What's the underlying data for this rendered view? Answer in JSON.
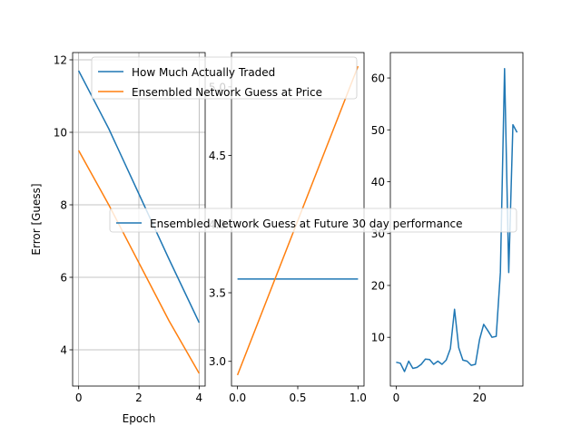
{
  "chart_data": [
    {
      "type": "line",
      "xlabel": "Epoch",
      "ylabel": "Error [Guess]",
      "grid": true,
      "xlim": [
        -0.2,
        4.2
      ],
      "ylim": [
        3.0,
        12.2
      ],
      "xticks": [
        0,
        2,
        4
      ],
      "yticks": [
        4,
        6,
        8,
        10,
        12
      ],
      "series": [
        {
          "name": "How Much Actually Traded",
          "color": "#1f77b4",
          "x": [
            0,
            1,
            2,
            3,
            4
          ],
          "y": [
            11.7,
            10.1,
            8.3,
            6.5,
            4.75
          ]
        },
        {
          "name": "Ensembled Network Guess at Price",
          "color": "#ff7f0e",
          "x": [
            0,
            1,
            2,
            3,
            4
          ],
          "y": [
            9.5,
            8.0,
            6.4,
            4.8,
            3.35
          ]
        }
      ],
      "legend": "top-right"
    },
    {
      "type": "line",
      "xlim": [
        -0.05,
        1.05
      ],
      "ylim": [
        2.82,
        5.25
      ],
      "xticks": [
        0.0,
        0.5,
        1.0
      ],
      "xtick_labels": [
        "0.0",
        "0.5",
        "1.0"
      ],
      "yticks": [
        3.0,
        3.5,
        4.0,
        4.5,
        5.0
      ],
      "ytick_labels": [
        "3.0",
        "3.5",
        "4.0",
        "4.5",
        "5.0"
      ],
      "series": [
        {
          "color": "#1f77b4",
          "x": [
            0,
            1
          ],
          "y": [
            3.6,
            3.6
          ]
        },
        {
          "color": "#ff7f0e",
          "x": [
            0,
            1
          ],
          "y": [
            2.9,
            5.15
          ]
        }
      ]
    },
    {
      "type": "line",
      "xlim": [
        -1.4,
        30.4
      ],
      "ylim": [
        0.6,
        64.9
      ],
      "xticks": [
        0,
        20
      ],
      "yticks": [
        10,
        20,
        30,
        40,
        50,
        60
      ],
      "series": [
        {
          "name": "Ensembled Network Guess at Future 30 day performance",
          "color": "#1f77b4",
          "x": [
            0,
            1,
            2,
            3,
            4,
            5,
            6,
            7,
            8,
            9,
            10,
            11,
            12,
            13,
            14,
            15,
            16,
            17,
            18,
            19,
            20,
            21,
            22,
            23,
            24,
            25,
            26,
            27,
            28,
            29
          ],
          "y": [
            5.2,
            5.0,
            3.4,
            5.4,
            4.0,
            4.2,
            4.8,
            5.8,
            5.7,
            4.8,
            5.4,
            4.8,
            5.6,
            7.8,
            15.4,
            8.0,
            5.6,
            5.4,
            4.6,
            4.8,
            9.6,
            12.5,
            11.3,
            10.0,
            10.2,
            22.5,
            61.8,
            22.5,
            51.0,
            49.5
          ]
        }
      ],
      "legend": "center"
    }
  ]
}
